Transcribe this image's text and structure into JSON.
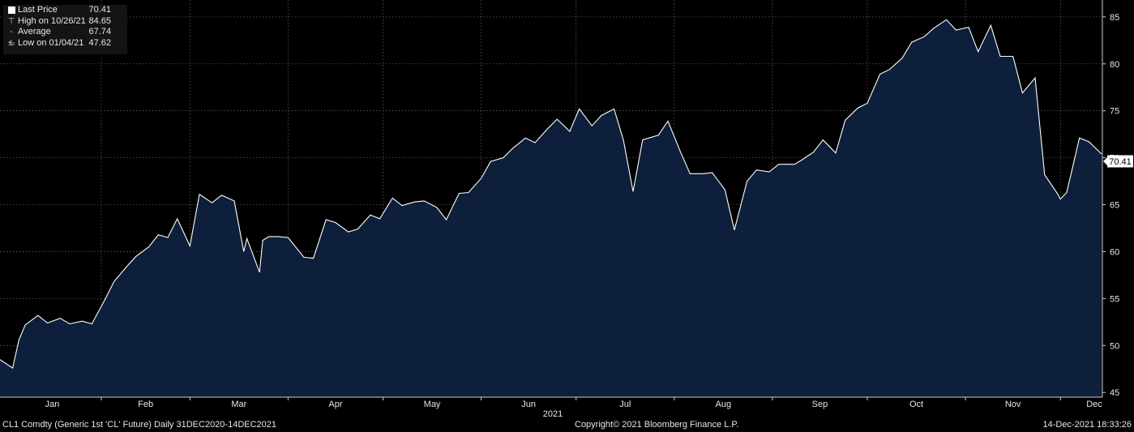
{
  "legend": {
    "last_price_label": "Last Price",
    "last_price_value": "70.41",
    "high_label": "High on 10/26/21",
    "high_value": "84.65",
    "average_label": "Average",
    "average_value": "67.74",
    "low_label": "Low on 01/04/21",
    "low_value": "47.62"
  },
  "footer": {
    "left": "CL1 Comdty (Generic 1st 'CL' Future)  Daily 31DEC2020-14DEC2021",
    "center": "Copyright© 2021 Bloomberg Finance L.P.",
    "right": "14-Dec-2021 18:33:26"
  },
  "colors": {
    "background": "#000000",
    "area_fill": "#0d1f3a",
    "line": "#ffffff",
    "grid": "#5a5a5a"
  },
  "chart_data": {
    "type": "area",
    "title": "",
    "year_label": "2021",
    "last_value_label": "70.41",
    "x_tick_labels": [
      "Jan",
      "Feb",
      "Mar",
      "Apr",
      "May",
      "Jun",
      "Jul",
      "Aug",
      "Sep",
      "Oct",
      "Nov",
      "Dec"
    ],
    "y_ticks": [
      45,
      50,
      55,
      60,
      65,
      70,
      75,
      80,
      85
    ],
    "ylim": [
      44.5,
      86.8
    ],
    "xlim": [
      "2020-12-31",
      "2021-12-14"
    ],
    "grid": true,
    "series": [
      {
        "x": [
          "2020-12-31",
          "2021-01-04",
          "2021-01-06",
          "2021-01-08",
          "2021-01-12",
          "2021-01-15",
          "2021-01-19",
          "2021-01-22",
          "2021-01-26",
          "2021-01-29",
          "2021-02-02",
          "2021-02-05",
          "2021-02-09",
          "2021-02-12",
          "2021-02-16",
          "2021-02-19",
          "2021-02-22",
          "2021-02-25",
          "2021-03-01",
          "2021-03-04",
          "2021-03-08",
          "2021-03-11",
          "2021-03-15",
          "2021-03-18",
          "2021-03-19",
          "2021-03-23",
          "2021-03-24",
          "2021-03-26",
          "2021-03-29",
          "2021-04-01",
          "2021-04-06",
          "2021-04-09",
          "2021-04-13",
          "2021-04-16",
          "2021-04-20",
          "2021-04-23",
          "2021-04-27",
          "2021-04-30",
          "2021-05-04",
          "2021-05-07",
          "2021-05-11",
          "2021-05-14",
          "2021-05-18",
          "2021-05-21",
          "2021-05-25",
          "2021-05-28",
          "2021-06-01",
          "2021-06-04",
          "2021-06-08",
          "2021-06-11",
          "2021-06-15",
          "2021-06-18",
          "2021-06-22",
          "2021-06-25",
          "2021-06-29",
          "2021-07-02",
          "2021-07-06",
          "2021-07-09",
          "2021-07-13",
          "2021-07-16",
          "2021-07-19",
          "2021-07-22",
          "2021-07-27",
          "2021-07-30",
          "2021-08-03",
          "2021-08-06",
          "2021-08-10",
          "2021-08-13",
          "2021-08-17",
          "2021-08-20",
          "2021-08-24",
          "2021-08-27",
          "2021-08-31",
          "2021-09-03",
          "2021-09-08",
          "2021-09-10",
          "2021-09-14",
          "2021-09-17",
          "2021-09-21",
          "2021-09-24",
          "2021-09-28",
          "2021-10-01",
          "2021-10-05",
          "2021-10-08",
          "2021-10-12",
          "2021-10-15",
          "2021-10-19",
          "2021-10-22",
          "2021-10-26",
          "2021-10-29",
          "2021-11-02",
          "2021-11-05",
          "2021-11-09",
          "2021-11-12",
          "2021-11-16",
          "2021-11-19",
          "2021-11-23",
          "2021-11-26",
          "2021-11-30",
          "2021-12-01",
          "2021-12-03",
          "2021-12-07",
          "2021-12-10",
          "2021-12-14"
        ],
        "y": [
          48.5,
          47.6,
          50.6,
          52.2,
          53.2,
          52.4,
          52.9,
          52.3,
          52.6,
          52.3,
          54.8,
          56.8,
          58.4,
          59.5,
          60.5,
          61.8,
          61.5,
          63.5,
          60.6,
          66.1,
          65.2,
          66.0,
          65.4,
          60.0,
          61.4,
          57.8,
          61.2,
          61.6,
          61.6,
          61.5,
          59.4,
          59.3,
          63.4,
          63.1,
          62.1,
          62.4,
          63.9,
          63.5,
          65.7,
          64.9,
          65.3,
          65.4,
          64.7,
          63.4,
          66.2,
          66.3,
          67.8,
          69.6,
          70.0,
          71.0,
          72.1,
          71.6,
          73.1,
          74.1,
          72.8,
          75.2,
          73.4,
          74.5,
          75.2,
          71.8,
          66.4,
          71.9,
          72.4,
          73.9,
          70.6,
          68.3,
          68.3,
          68.4,
          66.6,
          62.3,
          67.5,
          68.7,
          68.5,
          69.3,
          69.3,
          69.7,
          70.6,
          71.9,
          70.5,
          74.0,
          75.3,
          75.8,
          78.9,
          79.4,
          80.6,
          82.3,
          82.9,
          83.8,
          84.7,
          83.6,
          83.9,
          81.3,
          84.1,
          80.8,
          80.8,
          76.9,
          78.5,
          68.2,
          66.2,
          65.6,
          66.3,
          72.1,
          71.7,
          70.4
        ]
      }
    ]
  }
}
